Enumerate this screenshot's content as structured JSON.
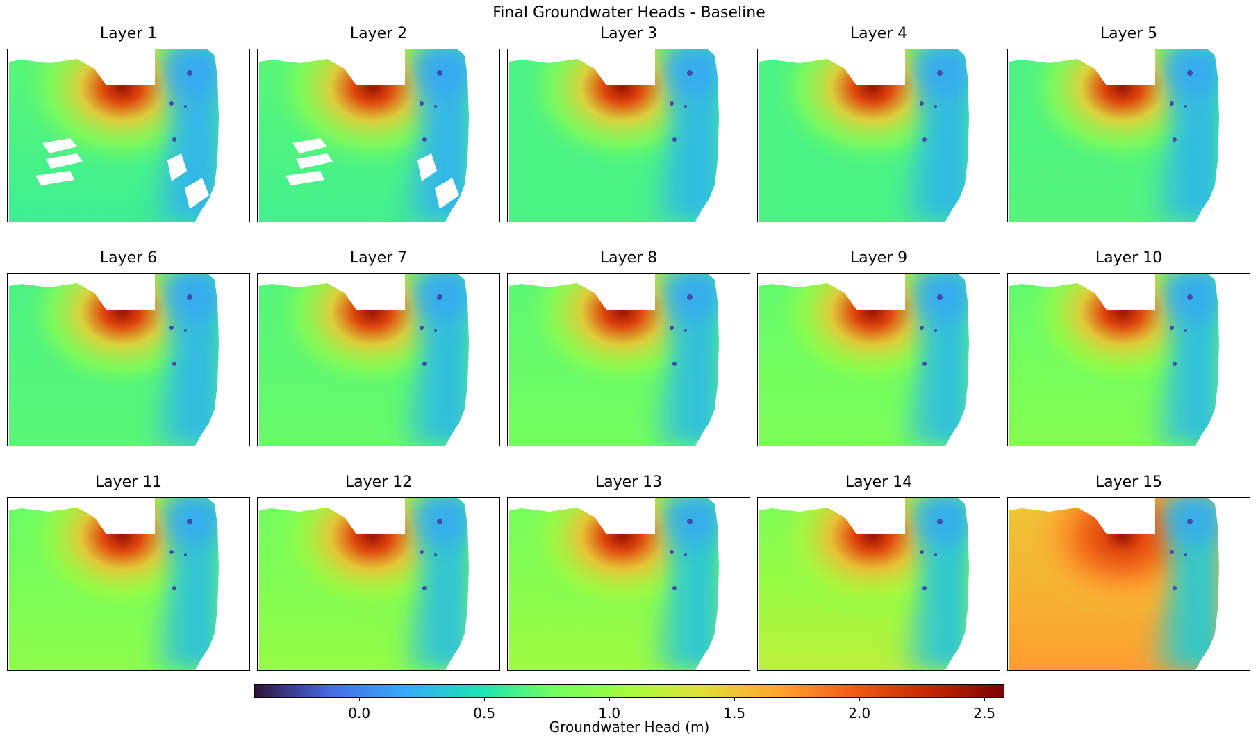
{
  "chart_data": {
    "type": "heatmap",
    "title": "Final Groundwater Heads - Baseline",
    "panels": [
      {
        "title": "Layer 1",
        "west_head": 0.7,
        "south_head": 0.6,
        "trough_head": 0.22,
        "mound_head": 2.45,
        "northeast_head": 0.15,
        "coastal_gaps": true
      },
      {
        "title": "Layer 2",
        "west_head": 0.7,
        "south_head": 0.62,
        "trough_head": 0.22,
        "mound_head": 2.45,
        "northeast_head": 0.15,
        "coastal_gaps": true
      },
      {
        "title": "Layer 3",
        "west_head": 0.65,
        "south_head": 0.65,
        "trough_head": 0.25,
        "mound_head": 2.45,
        "northeast_head": 0.15,
        "coastal_gaps": false
      },
      {
        "title": "Layer 4",
        "west_head": 0.65,
        "south_head": 0.65,
        "trough_head": 0.25,
        "mound_head": 2.45,
        "northeast_head": 0.15,
        "coastal_gaps": false
      },
      {
        "title": "Layer 5",
        "west_head": 0.65,
        "south_head": 0.68,
        "trough_head": 0.25,
        "mound_head": 2.45,
        "northeast_head": 0.15,
        "coastal_gaps": false
      },
      {
        "title": "Layer 6",
        "west_head": 0.65,
        "south_head": 0.7,
        "trough_head": 0.25,
        "mound_head": 2.45,
        "northeast_head": 0.15,
        "coastal_gaps": false
      },
      {
        "title": "Layer 7",
        "west_head": 0.68,
        "south_head": 0.75,
        "trough_head": 0.27,
        "mound_head": 2.45,
        "northeast_head": 0.15,
        "coastal_gaps": false
      },
      {
        "title": "Layer 8",
        "west_head": 0.7,
        "south_head": 0.8,
        "trough_head": 0.28,
        "mound_head": 2.45,
        "northeast_head": 0.15,
        "coastal_gaps": false
      },
      {
        "title": "Layer 9",
        "west_head": 0.72,
        "south_head": 0.85,
        "trough_head": 0.28,
        "mound_head": 2.45,
        "northeast_head": 0.15,
        "coastal_gaps": false
      },
      {
        "title": "Layer 10",
        "west_head": 0.72,
        "south_head": 0.9,
        "trough_head": 0.28,
        "mound_head": 2.45,
        "northeast_head": 0.15,
        "coastal_gaps": false
      },
      {
        "title": "Layer 11",
        "west_head": 0.75,
        "south_head": 0.95,
        "trough_head": 0.3,
        "mound_head": 2.45,
        "northeast_head": 0.15,
        "coastal_gaps": false
      },
      {
        "title": "Layer 12",
        "west_head": 0.78,
        "south_head": 1.0,
        "trough_head": 0.3,
        "mound_head": 2.45,
        "northeast_head": 0.15,
        "coastal_gaps": false
      },
      {
        "title": "Layer 13",
        "west_head": 0.8,
        "south_head": 1.05,
        "trough_head": 0.32,
        "mound_head": 2.45,
        "northeast_head": 0.15,
        "coastal_gaps": false
      },
      {
        "title": "Layer 14",
        "west_head": 0.85,
        "south_head": 1.2,
        "trough_head": 0.32,
        "mound_head": 2.45,
        "northeast_head": 0.15,
        "coastal_gaps": false
      },
      {
        "title": "Layer 15",
        "west_head": 1.5,
        "south_head": 1.7,
        "trough_head": 0.35,
        "mound_head": 2.45,
        "northeast_head": 0.15,
        "coastal_gaps": false
      }
    ],
    "colorbar": {
      "label": "Groundwater Head (m)",
      "vmin": -0.42,
      "vmax": 2.58,
      "ticks": [
        0.0,
        0.5,
        1.0,
        1.5,
        2.0,
        2.5
      ],
      "tick_labels": [
        "0.0",
        "0.5",
        "1.0",
        "1.5",
        "2.0",
        "2.5"
      ],
      "colormap": "turbo",
      "orientation": "horizontal"
    }
  }
}
